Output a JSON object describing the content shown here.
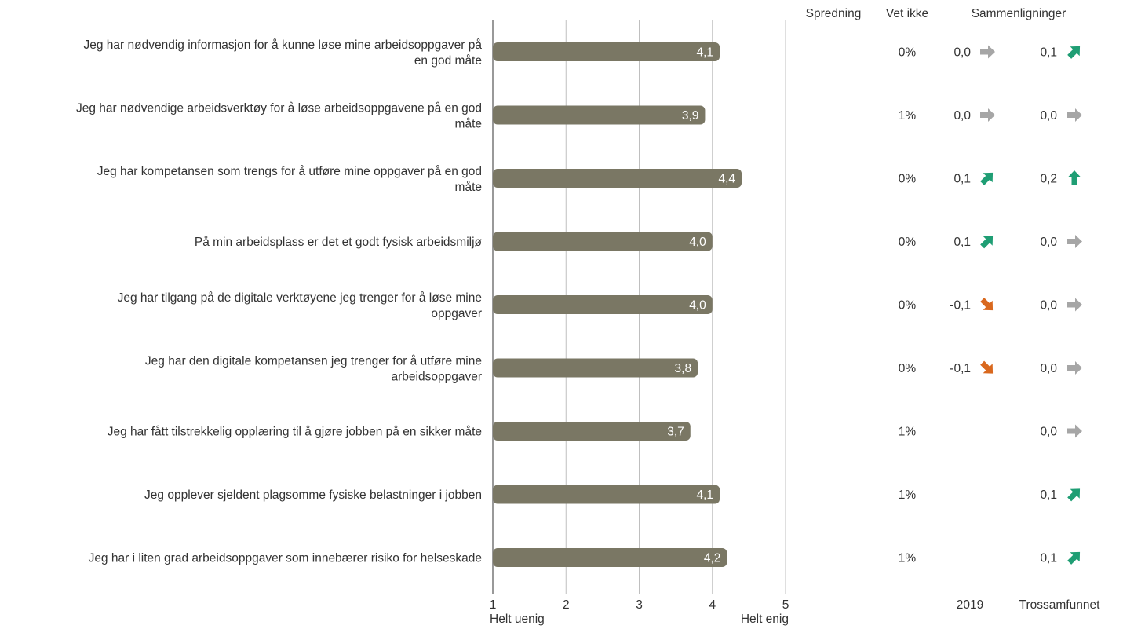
{
  "headers": {
    "spread": "Spredning",
    "dont_know": "Vet ikke",
    "comparisons": "Sammenligninger",
    "col_2019": "2019",
    "col_trossamfunnet": "Trossamfunnet"
  },
  "colors": {
    "bar": "#7a7764",
    "axis": "#999999",
    "grid": "#bfbfbf",
    "arrow_up": "#1f9e74",
    "arrow_down": "#d9681e",
    "arrow_flat": "#a6a6a6"
  },
  "chart_data": {
    "type": "bar",
    "orientation": "horizontal",
    "xlim": [
      1,
      5
    ],
    "xticks": [
      "1",
      "2",
      "3",
      "4",
      "5"
    ],
    "x_min_label": "Helt uenig",
    "x_max_label": "Helt enig",
    "grid": true,
    "categories": [
      [
        "Jeg har nødvendig informasjon for å kunne løse mine arbeidsoppgaver på",
        "en god måte"
      ],
      [
        "Jeg har nødvendige arbeidsverktøy for å løse arbeidsoppgavene på en god",
        "måte"
      ],
      [
        "Jeg har kompetansen som trengs for å utføre mine oppgaver på en god",
        "måte"
      ],
      [
        "På min arbeidsplass er det et godt fysisk arbeidsmiljø"
      ],
      [
        "Jeg har tilgang på de digitale verktøyene jeg trenger for å løse mine",
        "oppgaver"
      ],
      [
        "Jeg har den digitale kompetansen jeg trenger for å utføre mine",
        "arbeidsoppgaver"
      ],
      [
        "Jeg har fått tilstrekkelig opplæring til å gjøre jobben på en sikker måte"
      ],
      [
        "Jeg opplever sjeldent plagsomme fysiske belastninger i jobben"
      ],
      [
        "Jeg har i liten grad arbeidsoppgaver som innebærer risiko for helseskade"
      ]
    ],
    "values": [
      4.1,
      3.9,
      4.4,
      4.0,
      4.0,
      3.8,
      3.7,
      4.1,
      4.2
    ],
    "value_labels": [
      "4,1",
      "3,9",
      "4,4",
      "4,0",
      "4,0",
      "3,8",
      "3,7",
      "4,1",
      "4,2"
    ],
    "dont_know": [
      "0%",
      "1%",
      "0%",
      "0%",
      "0%",
      "0%",
      "1%",
      "1%",
      "1%"
    ],
    "comparison_2019": [
      {
        "value": "0,0",
        "trend": "flat"
      },
      {
        "value": "0,0",
        "trend": "flat"
      },
      {
        "value": "0,1",
        "trend": "up-right"
      },
      {
        "value": "0,1",
        "trend": "up-right"
      },
      {
        "value": "-0,1",
        "trend": "down-right"
      },
      {
        "value": "-0,1",
        "trend": "down-right"
      },
      null,
      null,
      null
    ],
    "comparison_trossamfunnet": [
      {
        "value": "0,1",
        "trend": "up-right"
      },
      {
        "value": "0,0",
        "trend": "flat"
      },
      {
        "value": "0,2",
        "trend": "up"
      },
      {
        "value": "0,0",
        "trend": "flat"
      },
      {
        "value": "0,0",
        "trend": "flat"
      },
      {
        "value": "0,0",
        "trend": "flat"
      },
      {
        "value": "0,0",
        "trend": "flat"
      },
      {
        "value": "0,1",
        "trend": "up-right"
      },
      {
        "value": "0,1",
        "trend": "up-right"
      }
    ]
  }
}
